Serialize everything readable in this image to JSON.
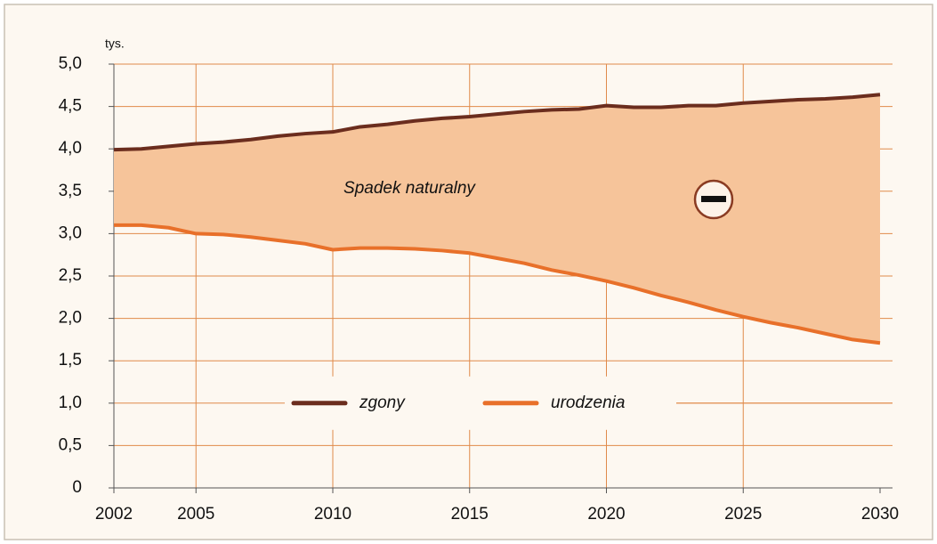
{
  "chart_data": {
    "type": "line",
    "y_unit_label": "tys.",
    "annotation": "Spadek naturalny",
    "x": [
      2002,
      2003,
      2004,
      2005,
      2006,
      2007,
      2008,
      2009,
      2010,
      2011,
      2012,
      2013,
      2014,
      2015,
      2016,
      2017,
      2018,
      2019,
      2020,
      2021,
      2022,
      2023,
      2024,
      2025,
      2026,
      2027,
      2028,
      2029,
      2030
    ],
    "series": [
      {
        "name": "zgony",
        "color": "#6b2d1e",
        "values": [
          3.99,
          4.0,
          4.03,
          4.06,
          4.08,
          4.11,
          4.15,
          4.18,
          4.2,
          4.26,
          4.29,
          4.33,
          4.36,
          4.38,
          4.41,
          4.44,
          4.46,
          4.47,
          4.51,
          4.49,
          4.49,
          4.51,
          4.51,
          4.54,
          4.56,
          4.58,
          4.59,
          4.61,
          4.64
        ]
      },
      {
        "name": "urodzenia",
        "color": "#e8702a",
        "values": [
          3.1,
          3.1,
          3.07,
          3.0,
          2.99,
          2.96,
          2.92,
          2.88,
          2.81,
          2.83,
          2.83,
          2.82,
          2.8,
          2.77,
          2.71,
          2.65,
          2.57,
          2.51,
          2.44,
          2.36,
          2.27,
          2.19,
          2.1,
          2.02,
          1.95,
          1.89,
          1.82,
          1.75,
          1.71
        ]
      }
    ],
    "fill_between_color": "#f6c49a",
    "xlim": [
      2002,
      2030
    ],
    "xticks": [
      2002,
      2005,
      2010,
      2015,
      2020,
      2025,
      2030
    ],
    "ylim": [
      0,
      5
    ],
    "yticks": [
      0,
      {
        "value": 0.5,
        "label": "0,5"
      },
      {
        "value": 1,
        "label": "1,0"
      },
      {
        "value": 1.5,
        "label": "1,5"
      },
      {
        "value": 2,
        "label": "2,0"
      },
      {
        "value": 2.5,
        "label": "2,5"
      },
      {
        "value": 3,
        "label": "3,0"
      },
      {
        "value": 3.5,
        "label": "3,5"
      },
      {
        "value": 4,
        "label": "4,0"
      },
      {
        "value": 4.5,
        "label": "4,5"
      },
      {
        "value": 5,
        "label": "5,0"
      }
    ],
    "grid": true,
    "legend": "center"
  }
}
